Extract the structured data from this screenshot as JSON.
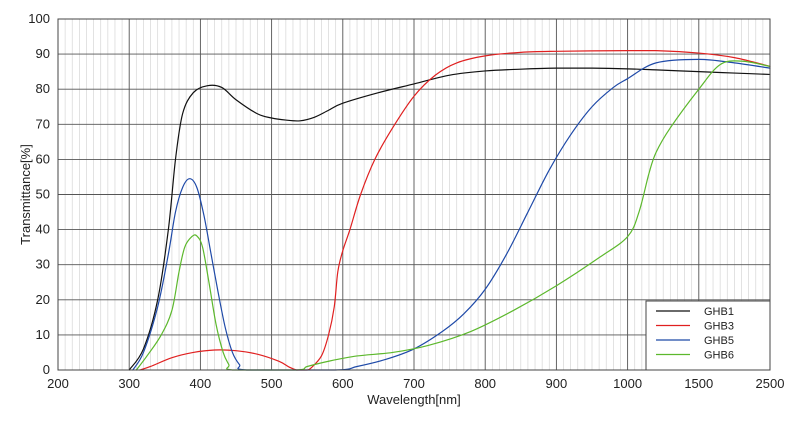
{
  "chart_data": {
    "type": "line",
    "xlabel": "Wavelength[nm]",
    "ylabel": "Transmittance[%]",
    "ylim": [
      0,
      100
    ],
    "y_ticks": [
      0,
      10,
      20,
      30,
      40,
      50,
      60,
      70,
      80,
      90,
      100
    ],
    "x_tick_labels": [
      "200",
      "300",
      "400",
      "500",
      "600",
      "700",
      "800",
      "900",
      "1000",
      "1500",
      "2500"
    ],
    "x_tick_values": [
      200,
      300,
      400,
      500,
      600,
      700,
      800,
      900,
      1000,
      1500,
      2500
    ],
    "grid": true,
    "legend_position": "bottom-right",
    "series": [
      {
        "name": "GHB1",
        "color": "#111111",
        "points": [
          [
            300,
            0
          ],
          [
            320,
            6
          ],
          [
            340,
            20
          ],
          [
            355,
            40
          ],
          [
            365,
            60
          ],
          [
            375,
            73
          ],
          [
            390,
            79
          ],
          [
            410,
            81
          ],
          [
            430,
            80.5
          ],
          [
            450,
            77
          ],
          [
            480,
            73
          ],
          [
            500,
            71.8
          ],
          [
            520,
            71.2
          ],
          [
            540,
            71
          ],
          [
            560,
            72
          ],
          [
            580,
            74
          ],
          [
            600,
            76
          ],
          [
            650,
            79
          ],
          [
            700,
            81.5
          ],
          [
            750,
            84
          ],
          [
            800,
            85.2
          ],
          [
            850,
            85.7
          ],
          [
            900,
            86
          ],
          [
            950,
            86
          ],
          [
            1000,
            85.8
          ],
          [
            1200,
            85.5
          ],
          [
            1500,
            85
          ],
          [
            2000,
            84.6
          ],
          [
            2500,
            84.2
          ]
        ]
      },
      {
        "name": "GHB3",
        "color": "#e02020",
        "points": [
          [
            315,
            0
          ],
          [
            330,
            1
          ],
          [
            360,
            3.5
          ],
          [
            390,
            5
          ],
          [
            420,
            5.7
          ],
          [
            450,
            5.5
          ],
          [
            480,
            4.5
          ],
          [
            510,
            2.5
          ],
          [
            525,
            0.8
          ],
          [
            535,
            0
          ],
          [
            540,
            0
          ],
          [
            550,
            0
          ],
          [
            555,
            0.5
          ],
          [
            570,
            4
          ],
          [
            580,
            10
          ],
          [
            588,
            18
          ],
          [
            593,
            28
          ],
          [
            600,
            34
          ],
          [
            610,
            40
          ],
          [
            625,
            50
          ],
          [
            645,
            60
          ],
          [
            670,
            69
          ],
          [
            700,
            78
          ],
          [
            730,
            84
          ],
          [
            760,
            87.5
          ],
          [
            800,
            89.5
          ],
          [
            850,
            90.5
          ],
          [
            900,
            90.8
          ],
          [
            1000,
            91
          ],
          [
            1200,
            91
          ],
          [
            1500,
            90.3
          ],
          [
            2000,
            89
          ],
          [
            2500,
            86.5
          ]
        ]
      },
      {
        "name": "GHB5",
        "color": "#1f4aa8",
        "points": [
          [
            305,
            0
          ],
          [
            320,
            5
          ],
          [
            340,
            18
          ],
          [
            355,
            33
          ],
          [
            365,
            45
          ],
          [
            375,
            52
          ],
          [
            385,
            54.5
          ],
          [
            395,
            52
          ],
          [
            405,
            44
          ],
          [
            415,
            33
          ],
          [
            425,
            22
          ],
          [
            435,
            12
          ],
          [
            445,
            5
          ],
          [
            455,
            1.5
          ],
          [
            465,
            0
          ],
          [
            590,
            0
          ],
          [
            620,
            1
          ],
          [
            660,
            3
          ],
          [
            700,
            6
          ],
          [
            740,
            11
          ],
          [
            770,
            16
          ],
          [
            800,
            23
          ],
          [
            830,
            33
          ],
          [
            860,
            45
          ],
          [
            890,
            57
          ],
          [
            920,
            67
          ],
          [
            950,
            75
          ],
          [
            980,
            80.5
          ],
          [
            1000,
            83
          ],
          [
            1200,
            87.5
          ],
          [
            1500,
            88.5
          ],
          [
            2000,
            87.5
          ],
          [
            2500,
            86
          ]
        ]
      },
      {
        "name": "GHB6",
        "color": "#5cb82c",
        "points": [
          [
            310,
            0
          ],
          [
            325,
            4
          ],
          [
            345,
            10
          ],
          [
            360,
            17
          ],
          [
            370,
            28
          ],
          [
            378,
            35
          ],
          [
            388,
            38
          ],
          [
            395,
            38.2
          ],
          [
            403,
            35
          ],
          [
            412,
            25
          ],
          [
            422,
            13
          ],
          [
            432,
            5
          ],
          [
            440,
            1.5
          ],
          [
            445,
            0
          ],
          [
            535,
            0
          ],
          [
            550,
            1
          ],
          [
            580,
            2.5
          ],
          [
            620,
            4
          ],
          [
            670,
            5
          ],
          [
            720,
            7
          ],
          [
            780,
            11
          ],
          [
            840,
            17
          ],
          [
            900,
            24
          ],
          [
            960,
            32
          ],
          [
            1000,
            38
          ],
          [
            1080,
            45
          ],
          [
            1150,
            56
          ],
          [
            1200,
            62
          ],
          [
            1300,
            69
          ],
          [
            1500,
            80
          ],
          [
            1800,
            87
          ],
          [
            2100,
            88
          ],
          [
            2500,
            86.5
          ]
        ]
      }
    ]
  }
}
